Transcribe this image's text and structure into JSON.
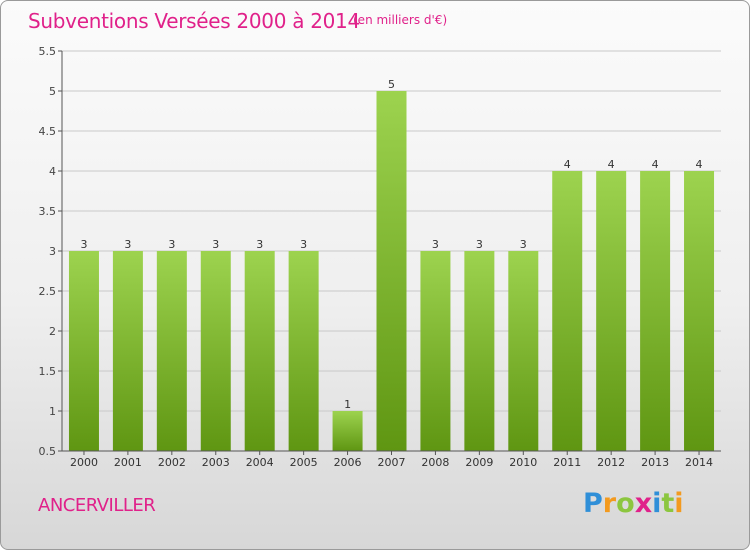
{
  "title": "Subventions Versées 2000 à 2014",
  "unit_note": "(en milliers d'€)",
  "commune": "ANCERVILLER",
  "logo": {
    "text": "Proxiti",
    "letters": [
      {
        "ch": "P",
        "color": "#2f8fd8"
      },
      {
        "ch": "r",
        "color": "#f39a1e"
      },
      {
        "ch": "o",
        "color": "#8cc63f"
      },
      {
        "ch": "x",
        "color": "#e0218a"
      },
      {
        "ch": "i",
        "color": "#2f8fd8"
      },
      {
        "ch": "t",
        "color": "#8cc63f"
      },
      {
        "ch": "i",
        "color": "#f39a1e"
      }
    ]
  },
  "colors": {
    "title": "#e0218a",
    "bar_top": "#9dd34f",
    "bar_bottom": "#5f9612",
    "grid": "#c9c9c9",
    "axis": "#555555"
  },
  "chart_data": {
    "type": "bar",
    "categories": [
      "2000",
      "2001",
      "2002",
      "2003",
      "2004",
      "2005",
      "2006",
      "2007",
      "2008",
      "2009",
      "2010",
      "2011",
      "2012",
      "2013",
      "2014"
    ],
    "values": [
      3,
      3,
      3,
      3,
      3,
      3,
      1,
      5,
      3,
      3,
      3,
      4,
      4,
      4,
      4
    ],
    "data_labels": [
      "3",
      "3",
      "3",
      "3",
      "3",
      "3",
      "1",
      "5",
      "3",
      "3",
      "3",
      "4",
      "4",
      "4",
      "4"
    ],
    "ylim": [
      0.5,
      5.5
    ],
    "yticks": [
      0.5,
      1,
      1.5,
      2,
      2.5,
      3,
      3.5,
      4,
      4.5,
      5,
      5.5
    ],
    "ytick_labels": [
      "0.5",
      "1",
      "1.5",
      "2",
      "2.5",
      "3",
      "3.5",
      "4",
      "4.5",
      "5",
      "5.5"
    ],
    "xlabel": "",
    "ylabel": "",
    "grid": true,
    "legend": "none"
  }
}
